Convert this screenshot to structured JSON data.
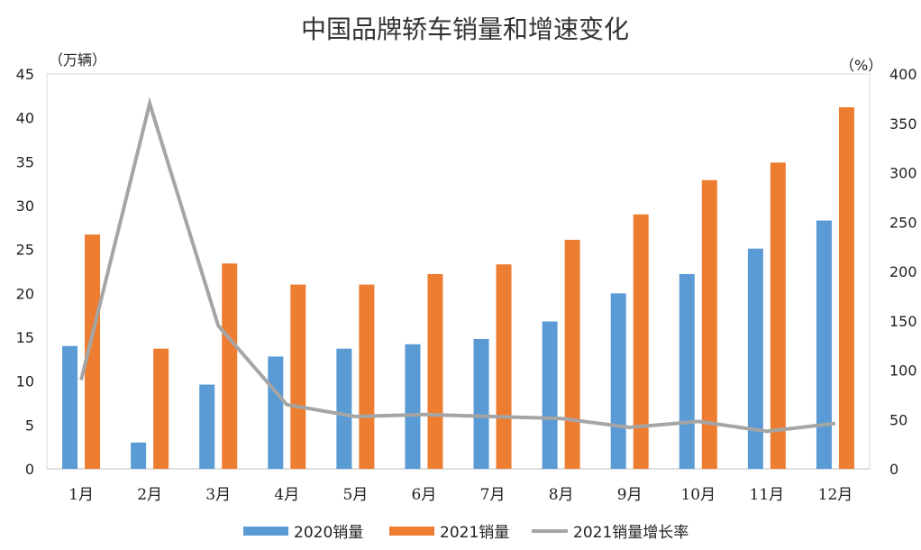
{
  "chart_data": {
    "type": "bar",
    "title": "中国品牌轿车销量和增速变化",
    "ylabel_left": "（万辆）",
    "ylabel_right": "（%）",
    "categories": [
      "1月",
      "2月",
      "3月",
      "4月",
      "5月",
      "6月",
      "7月",
      "8月",
      "9月",
      "10月",
      "11月",
      "12月"
    ],
    "ylim_left": [
      0,
      45
    ],
    "yticks_left": [
      0,
      5,
      10,
      15,
      20,
      25,
      30,
      35,
      40,
      45
    ],
    "ylim_right": [
      0,
      400
    ],
    "yticks_right": [
      0,
      50,
      100,
      150,
      200,
      250,
      300,
      350,
      400
    ],
    "grid": false,
    "legend_position": "bottom",
    "series": [
      {
        "name": "2020销量",
        "type": "bar",
        "axis": "left",
        "color": "#5B9BD5",
        "values": [
          14.0,
          3.0,
          9.6,
          12.8,
          13.7,
          14.2,
          14.8,
          16.8,
          20.0,
          22.2,
          25.1,
          28.3
        ]
      },
      {
        "name": "2021销量",
        "type": "bar",
        "axis": "left",
        "color": "#ED7D31",
        "values": [
          26.7,
          13.7,
          23.4,
          21.0,
          21.0,
          22.2,
          23.3,
          26.1,
          29.0,
          32.9,
          34.9,
          41.2
        ]
      },
      {
        "name": "2021销量增长率",
        "type": "line",
        "axis": "right",
        "color": "#A5A5A5",
        "values": [
          90,
          370,
          145,
          65,
          53,
          55,
          53,
          51,
          42,
          48,
          38,
          46
        ]
      }
    ]
  }
}
